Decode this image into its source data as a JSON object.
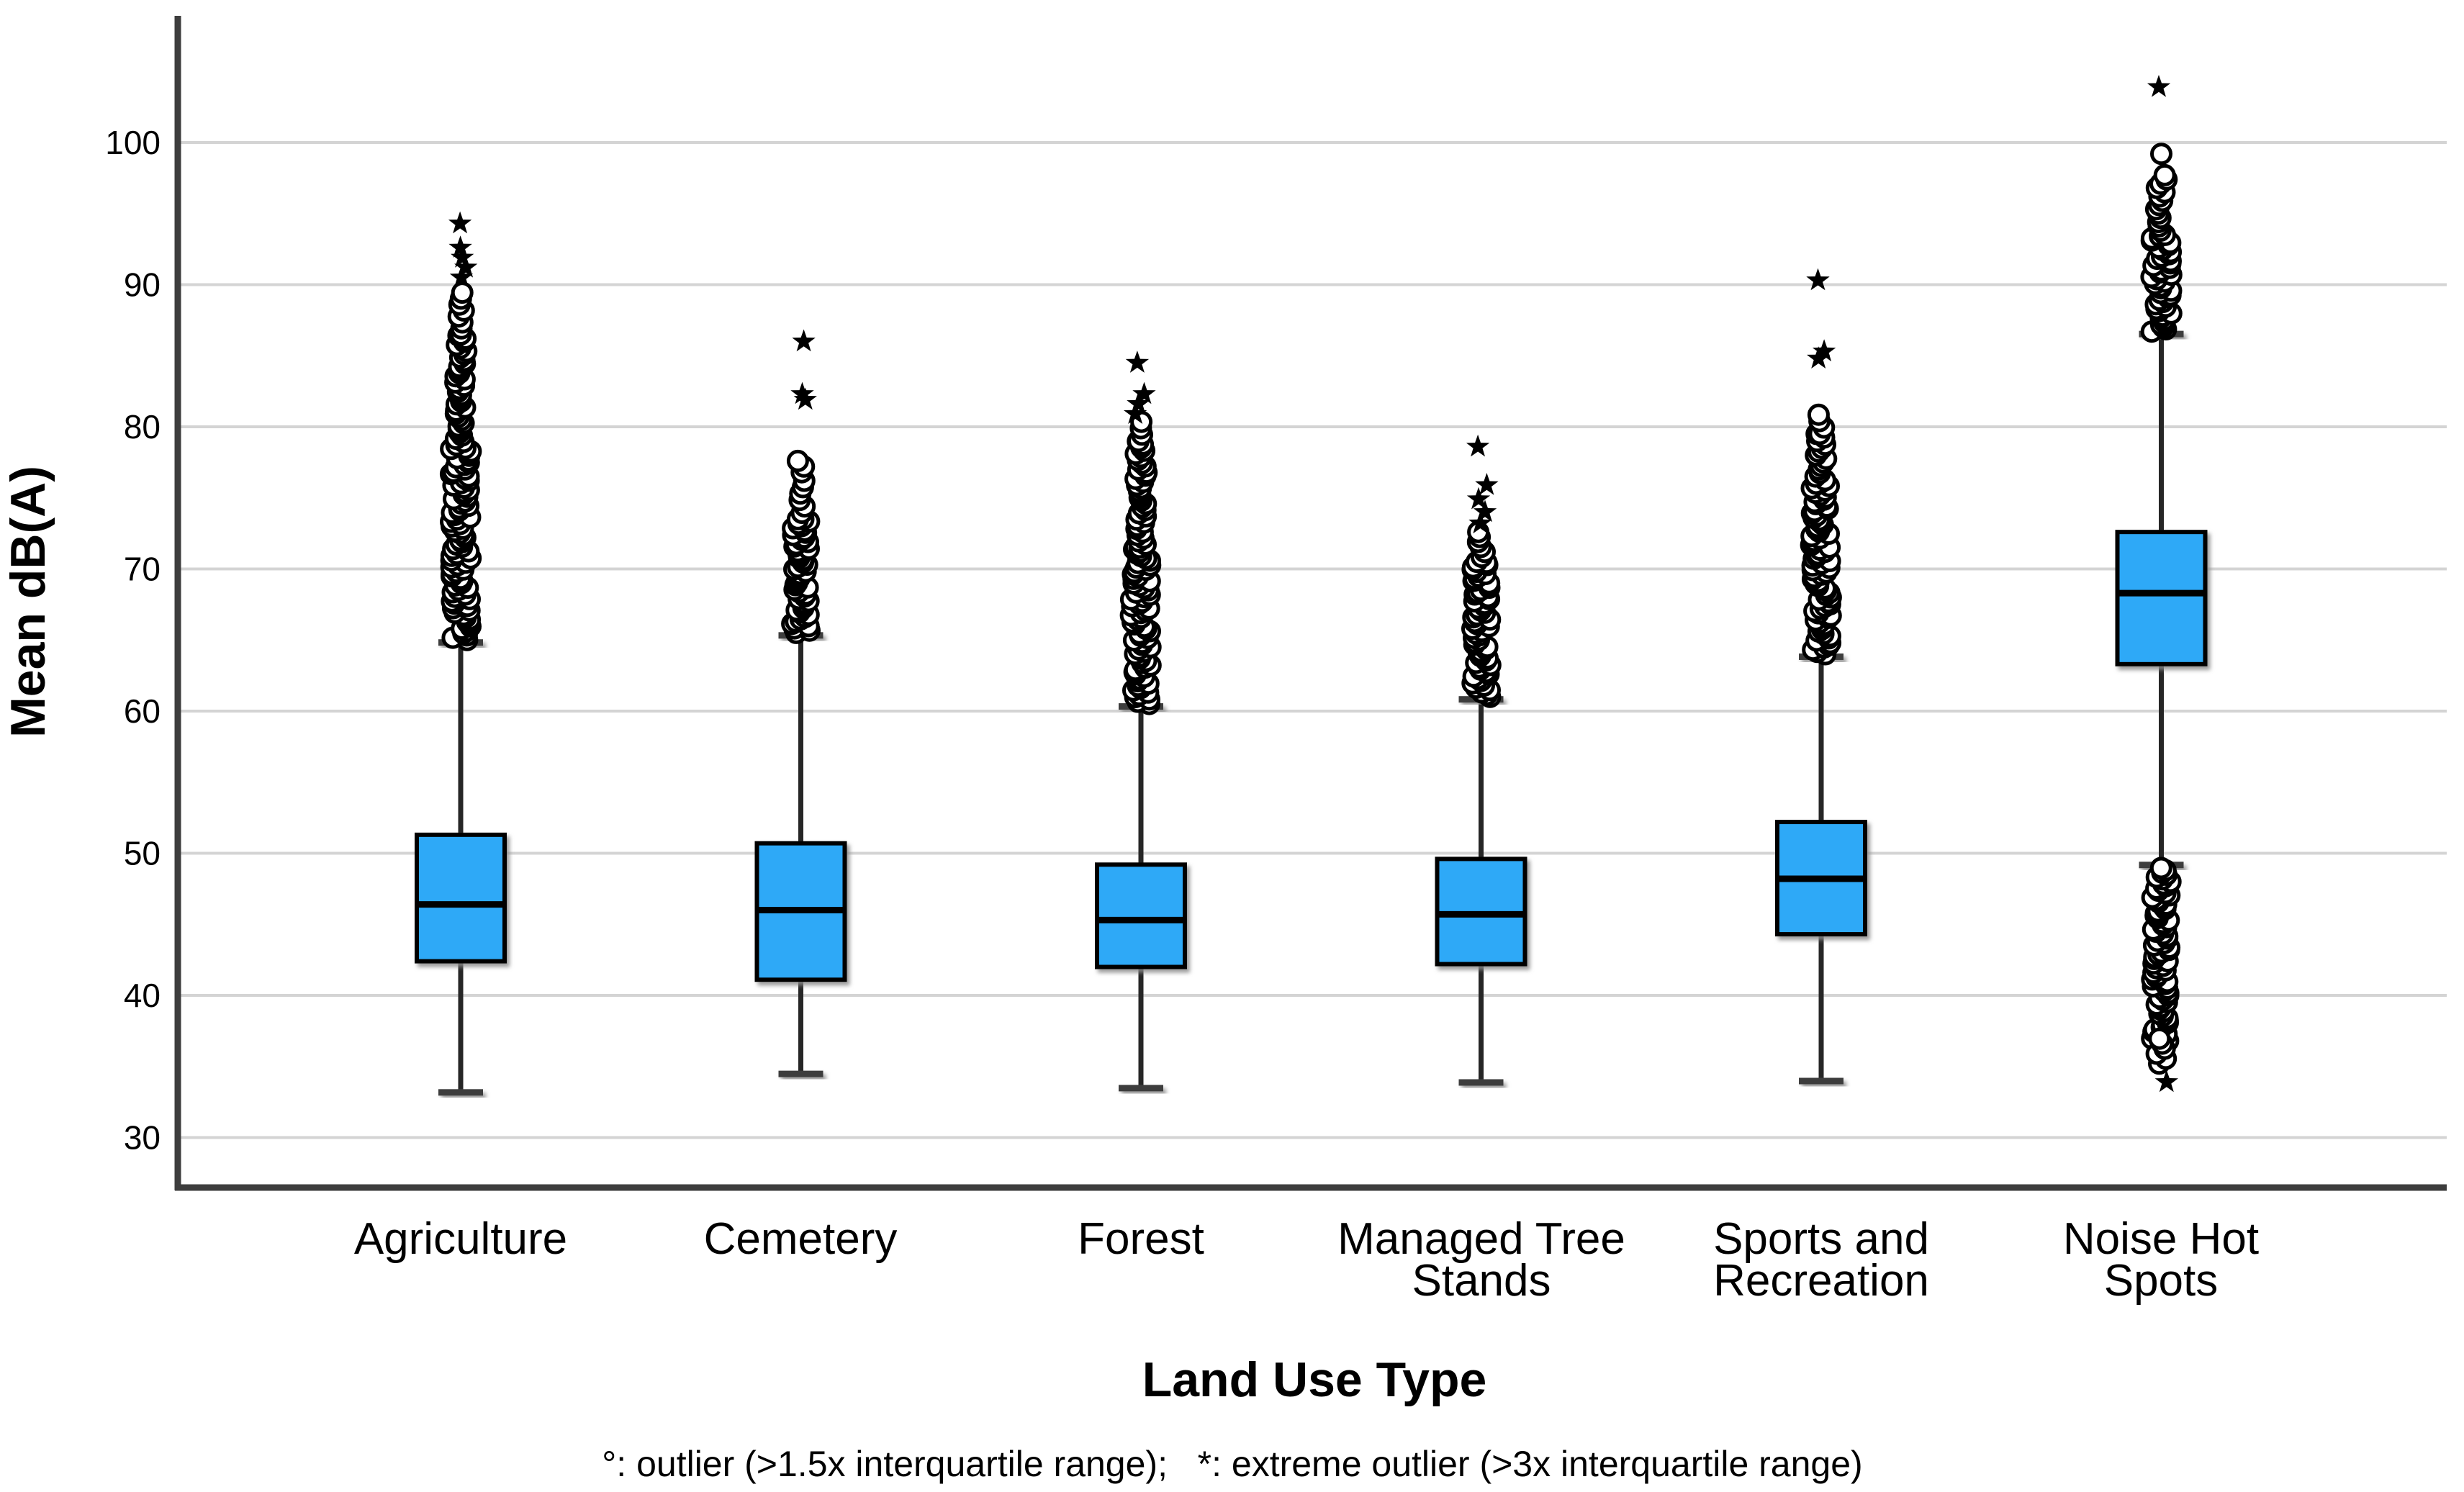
{
  "footnote": "°: outlier (>1.5x interquartile range);   *: extreme outlier (>3x interquartile range)",
  "colors": {
    "box_fill": "#2EA9F7",
    "box_border": "#000000",
    "median": "#000000",
    "whisker": "#262626",
    "whisker_cap": "#3c3c3c",
    "gridline": "#d4d4d4",
    "axis": "#3d3d3d",
    "outlier_stroke": "#000000",
    "background": "#ffffff"
  },
  "chart_data": {
    "type": "boxplot",
    "title": "",
    "ylabel": "Mean dB(A)",
    "xlabel": "Land Use Type",
    "y_axis": {
      "min": 26.4,
      "max": 109,
      "ticks": [
        100,
        90,
        80,
        70,
        60,
        50,
        40,
        30
      ],
      "tick_labels": [
        "100",
        "90",
        "80",
        "70",
        "60",
        "50",
        "40",
        "30"
      ],
      "grid": true
    },
    "categories": [
      "Agriculture",
      "Cemetery",
      "Forest",
      "Managed Tree Stands",
      "Sports and Recreation",
      "Noise Hot Spots"
    ],
    "category_label_lines": [
      [
        "Agriculture",
        ""
      ],
      [
        "Cemetery",
        ""
      ],
      [
        "Forest",
        ""
      ],
      [
        "Managed Tree",
        "Stands"
      ],
      [
        "Sports and",
        "Recreation"
      ],
      [
        "Noise Hot",
        "Spots"
      ]
    ],
    "boxes": [
      {
        "category": "Agriculture",
        "whisker_low": 33.2,
        "q1": 42.4,
        "median": 46.4,
        "q3": 51.3,
        "whisker_high": 64.8,
        "outlier_circle_segments": [
          {
            "from": 65.0,
            "to": 78.5,
            "spread": 14,
            "step": 0.16
          },
          {
            "from": 78.5,
            "to": 86.5,
            "spread": 8,
            "step": 0.22
          },
          {
            "from": 86.5,
            "to": 89.5,
            "spread": 5,
            "step": 0.42
          }
        ],
        "extreme_stars": [
          90.5,
          91.2,
          91.9,
          92.6,
          94.3
        ]
      },
      {
        "category": "Cemetery",
        "whisker_low": 34.5,
        "q1": 41.1,
        "median": 46.0,
        "q3": 50.7,
        "whisker_high": 65.3,
        "outlier_circle_segments": [
          {
            "from": 65.5,
            "to": 73.5,
            "spread": 13,
            "step": 0.16
          },
          {
            "from": 73.5,
            "to": 76.2,
            "spread": 7,
            "step": 0.45
          },
          {
            "from": 76.8,
            "to": 77.6,
            "spread": 5,
            "step": 0.4
          }
        ],
        "extreme_stars": [
          81.9,
          82.3,
          86.0
        ]
      },
      {
        "category": "Forest",
        "whisker_low": 33.5,
        "q1": 42.0,
        "median": 45.3,
        "q3": 49.2,
        "whisker_high": 60.3,
        "outlier_circle_segments": [
          {
            "from": 60.5,
            "to": 71.5,
            "spread": 14,
            "step": 0.16
          },
          {
            "from": 71.5,
            "to": 79.0,
            "spread": 8,
            "step": 0.22
          },
          {
            "from": 79.0,
            "to": 80.5,
            "spread": 5,
            "step": 0.45
          }
        ],
        "extreme_stars": [
          80.9,
          81.6,
          82.3,
          84.5
        ]
      },
      {
        "category": "Managed Tree Stands",
        "whisker_low": 33.9,
        "q1": 42.2,
        "median": 45.7,
        "q3": 49.6,
        "whisker_high": 60.8,
        "outlier_circle_segments": [
          {
            "from": 61.0,
            "to": 70.5,
            "spread": 13,
            "step": 0.16
          },
          {
            "from": 70.5,
            "to": 72.5,
            "spread": 7,
            "step": 0.35
          }
        ],
        "extreme_stars": [
          73.2,
          74.0,
          74.9,
          75.9,
          78.6
        ]
      },
      {
        "category": "Sports and Recreation",
        "whisker_low": 34.0,
        "q1": 44.3,
        "median": 48.2,
        "q3": 52.2,
        "whisker_high": 63.8,
        "outlier_circle_segments": [
          {
            "from": 64.0,
            "to": 76.0,
            "spread": 14,
            "step": 0.16
          },
          {
            "from": 76.0,
            "to": 79.5,
            "spread": 8,
            "step": 0.25
          },
          {
            "from": 79.5,
            "to": 81.0,
            "spread": 5,
            "step": 0.45
          }
        ],
        "extreme_stars": [
          84.8,
          85.3,
          90.3
        ]
      },
      {
        "category": "Noise Hot Spots",
        "whisker_low": 49.2,
        "q1": 63.3,
        "median": 68.3,
        "q3": 72.6,
        "whisker_high": 86.5,
        "outlier_circle_segments": [
          {
            "from": 86.7,
            "to": 93.5,
            "spread": 14,
            "step": 0.16
          },
          {
            "from": 93.5,
            "to": 97.8,
            "spread": 8,
            "step": 0.3
          },
          {
            "from": 99.2,
            "to": 99.2,
            "spread": 0,
            "step": 1
          },
          {
            "from": 36.8,
            "to": 49.0,
            "spread": 13,
            "step": 0.16
          },
          {
            "from": 35.2,
            "to": 36.8,
            "spread": 7,
            "step": 0.35
          }
        ],
        "extreme_stars": [
          103.9,
          33.9
        ]
      }
    ]
  }
}
